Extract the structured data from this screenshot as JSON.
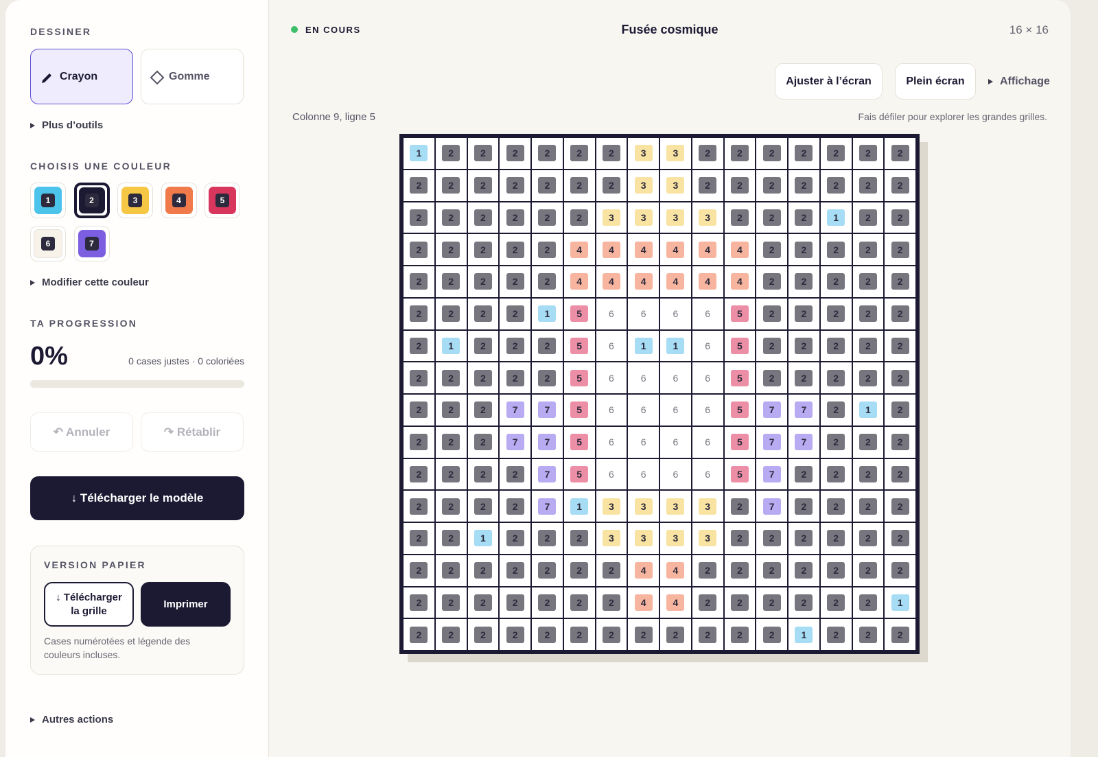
{
  "header": {
    "status": "EN COURS",
    "title": "Fusée cosmique",
    "size": "16 × 16"
  },
  "toolbar": {
    "fit": "Ajuster à l’écran",
    "fullscreen": "Plein écran",
    "display": "Affichage",
    "position": "Colonne 9, ligne 5",
    "hint": "Fais défiler pour explorer les grandes grilles."
  },
  "sidebar": {
    "draw_title": "DESSINER",
    "tools": [
      "Crayon",
      "Gomme"
    ],
    "more_tools": "Plus d’outils",
    "color_title": "CHOISIS UNE COULEUR",
    "palette": [
      {
        "number": "1",
        "color": "#4cc3ea",
        "cell_color": "#a6dcf4"
      },
      {
        "number": "2",
        "color": "#1c1a33",
        "cell_color": "#77767f",
        "selected": true
      },
      {
        "number": "3",
        "color": "#f6c744",
        "cell_color": "#f8e3a2"
      },
      {
        "number": "4",
        "color": "#f07a4a",
        "cell_color": "#f7b49e"
      },
      {
        "number": "5",
        "color": "#d9365e",
        "cell_color": "#ec8fa6"
      },
      {
        "number": "6",
        "color": "#f7f3ea",
        "cell_color": "#ffffff"
      },
      {
        "number": "7",
        "color": "#7b5fe0",
        "cell_color": "#b8abf1"
      }
    ],
    "edit_color": "Modifier cette couleur",
    "progress_title": "TA PROGRESSION",
    "progress_value": "0%",
    "progress_detail": "0 cases justes · 0 coloriées",
    "undo": "↶ Annuler",
    "redo": "↷ Rétablir",
    "download_model": "↓ Télécharger le modèle",
    "paper": {
      "title": "VERSION PAPIER",
      "download": "↓ Télécharger la grille",
      "print": "Imprimer",
      "caption": "Cases numérotées et légende des couleurs incluses."
    },
    "other_actions": "Autres actions"
  },
  "grid": {
    "rows": [
      [
        1,
        2,
        2,
        2,
        2,
        2,
        2,
        3,
        3,
        2,
        2,
        2,
        2,
        2,
        2,
        2
      ],
      [
        2,
        2,
        2,
        2,
        2,
        2,
        2,
        3,
        3,
        2,
        2,
        2,
        2,
        2,
        2,
        2
      ],
      [
        2,
        2,
        2,
        2,
        2,
        2,
        3,
        3,
        3,
        3,
        2,
        2,
        2,
        1,
        2,
        2
      ],
      [
        2,
        2,
        2,
        2,
        2,
        4,
        4,
        4,
        4,
        4,
        4,
        2,
        2,
        2,
        2,
        2
      ],
      [
        2,
        2,
        2,
        2,
        2,
        4,
        4,
        4,
        4,
        4,
        4,
        2,
        2,
        2,
        2,
        2
      ],
      [
        2,
        2,
        2,
        2,
        1,
        5,
        6,
        6,
        6,
        6,
        5,
        2,
        2,
        2,
        2,
        2
      ],
      [
        2,
        1,
        2,
        2,
        2,
        5,
        6,
        1,
        1,
        6,
        5,
        2,
        2,
        2,
        2,
        2
      ],
      [
        2,
        2,
        2,
        2,
        2,
        5,
        6,
        6,
        6,
        6,
        5,
        2,
        2,
        2,
        2,
        2
      ],
      [
        2,
        2,
        2,
        7,
        7,
        5,
        6,
        6,
        6,
        6,
        5,
        7,
        7,
        2,
        1,
        2
      ],
      [
        2,
        2,
        2,
        7,
        7,
        5,
        6,
        6,
        6,
        6,
        5,
        7,
        7,
        2,
        2,
        2
      ],
      [
        2,
        2,
        2,
        2,
        7,
        5,
        6,
        6,
        6,
        6,
        5,
        7,
        2,
        2,
        2,
        2
      ],
      [
        2,
        2,
        2,
        2,
        7,
        1,
        3,
        3,
        3,
        3,
        2,
        7,
        2,
        2,
        2,
        2
      ],
      [
        2,
        2,
        1,
        2,
        2,
        2,
        3,
        3,
        3,
        3,
        2,
        2,
        2,
        2,
        2,
        2
      ],
      [
        2,
        2,
        2,
        2,
        2,
        2,
        2,
        4,
        4,
        2,
        2,
        2,
        2,
        2,
        2,
        2
      ],
      [
        2,
        2,
        2,
        2,
        2,
        2,
        2,
        4,
        4,
        2,
        2,
        2,
        2,
        2,
        2,
        1
      ],
      [
        2,
        2,
        2,
        2,
        2,
        2,
        2,
        2,
        2,
        2,
        2,
        2,
        1,
        2,
        2,
        2
      ]
    ]
  }
}
